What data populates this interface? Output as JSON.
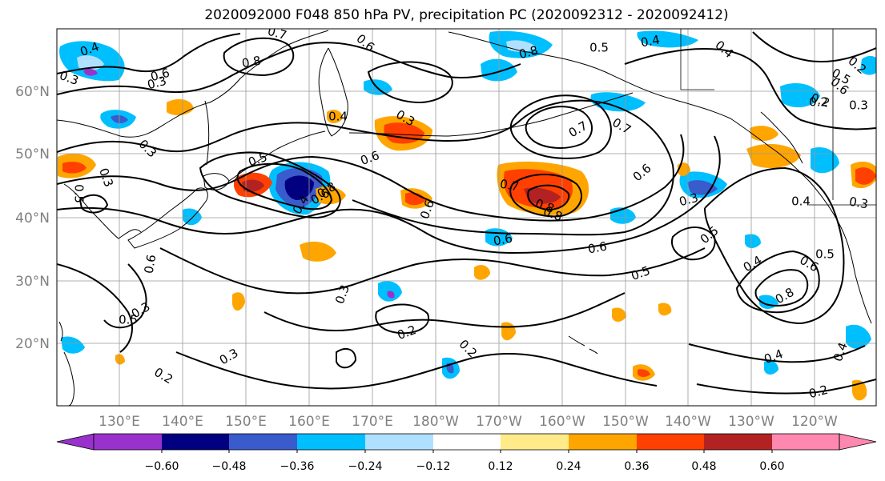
{
  "title": "2020092000 F048 850 hPa PV, precipitation PC (2020092312 - 2020092412)",
  "map": {
    "lat_labels": [
      "60°N",
      "50°N",
      "40°N",
      "30°N",
      "20°N"
    ],
    "lon_labels": [
      "130°E",
      "140°E",
      "150°E",
      "160°E",
      "170°E",
      "180°W",
      "170°W",
      "160°W",
      "150°W",
      "140°W",
      "130°W",
      "120°W"
    ],
    "contour_labels": [
      {
        "text": "0.4"
      },
      {
        "text": "0.3"
      },
      {
        "text": "0.6"
      },
      {
        "text": "0.8"
      },
      {
        "text": "0.7"
      },
      {
        "text": "0.6"
      },
      {
        "text": "0.8"
      },
      {
        "text": "0.5"
      },
      {
        "text": "0.4"
      },
      {
        "text": "0.4"
      },
      {
        "text": "0.5"
      },
      {
        "text": "0.6"
      },
      {
        "text": "0.2"
      },
      {
        "text": "0.4"
      },
      {
        "text": "0.3"
      },
      {
        "text": "0.3"
      },
      {
        "text": "0.6"
      },
      {
        "text": "0.5"
      },
      {
        "text": "0.3"
      },
      {
        "text": "0.5"
      },
      {
        "text": "0.4"
      },
      {
        "text": "0.6"
      },
      {
        "text": "0.8"
      },
      {
        "text": "0.8"
      },
      {
        "text": "0.7"
      },
      {
        "text": "0.7"
      },
      {
        "text": "0.6"
      },
      {
        "text": "0.7"
      },
      {
        "text": "0.8"
      },
      {
        "text": "0.6"
      },
      {
        "text": "0.3"
      },
      {
        "text": "0.6"
      },
      {
        "text": "0.6"
      },
      {
        "text": "0.5"
      },
      {
        "text": "0.5"
      },
      {
        "text": "0.2"
      },
      {
        "text": "0.3"
      },
      {
        "text": "0.4"
      },
      {
        "text": "0.4"
      },
      {
        "text": "0.5"
      },
      {
        "text": "0.6"
      },
      {
        "text": "0.3"
      },
      {
        "text": "0.3"
      },
      {
        "text": "0.2"
      },
      {
        "text": "0.2"
      },
      {
        "text": "0.3"
      },
      {
        "text": "0.2"
      },
      {
        "text": "0.8"
      },
      {
        "text": "0.4"
      },
      {
        "text": "0.2"
      },
      {
        "text": "0.4"
      },
      {
        "text": "0.2"
      },
      {
        "text": "0.3"
      },
      {
        "text": "0.3"
      },
      {
        "text": "0.5"
      },
      {
        "text": "0.6"
      }
    ]
  },
  "colorbar": {
    "colors": [
      "#9932cc",
      "#000080",
      "#3a5bcc",
      "#00bfff",
      "#b0e0ff",
      "#ffffff",
      "#ffeb8a",
      "#ffa500",
      "#ff4000",
      "#b22222",
      "#ff88b0"
    ],
    "tick_labels": [
      "−0.60",
      "−0.48",
      "−0.36",
      "−0.24",
      "−0.12",
      "0.12",
      "0.24",
      "0.36",
      "0.48",
      "0.60"
    ]
  }
}
